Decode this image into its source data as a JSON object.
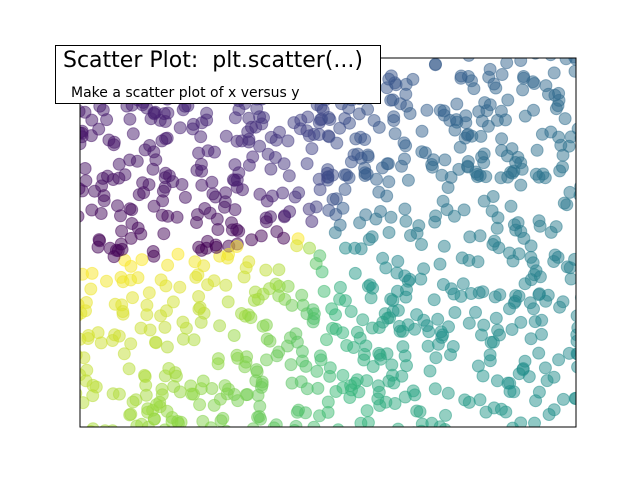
{
  "chart_data": {
    "type": "scatter",
    "title": "Scatter Plot:  plt.scatter(...)",
    "subtitle": "Make a scatter plot of x versus y",
    "xlabel": "",
    "ylabel": "",
    "xlim": [
      0,
      1
    ],
    "ylim": [
      0,
      1
    ],
    "ticks_visible": false,
    "grid": false,
    "colormap": "viridis",
    "marker": "circle",
    "marker_alpha": 0.5,
    "legend": "none",
    "point_count": 1000,
    "point_distribution": "uniform random over the axes area",
    "color_mapping": "hue follows the angle of each point around the centre of the plot, cycling through the viridis scale from dark purple (lower left) through blue-teal (lower right) to green (top) and yellow (upper left)"
  }
}
